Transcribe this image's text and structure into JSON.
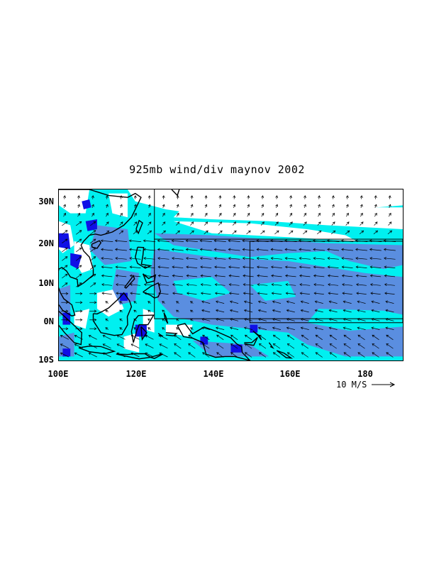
{
  "title": "925mb wind/div maynov 2002",
  "y_axis_labels": [
    "30N",
    "20N",
    "10N",
    "0N",
    "10S"
  ],
  "x_axis_labels": [
    "100E",
    "120E",
    "140E",
    "160E",
    "180"
  ],
  "reference_vector": {
    "label": "10 M/S",
    "speed": 10
  },
  "map_extent": {
    "lon_min": 100,
    "lon_max": 190,
    "lat_min": -10,
    "lat_max": 33
  },
  "colors": {
    "light_convergence": "#00f0f0",
    "moderate_convergence": "#5a8ee0",
    "strong_convergence": "#1010e6",
    "coastline": "#000000",
    "vectors": "#000000"
  }
}
